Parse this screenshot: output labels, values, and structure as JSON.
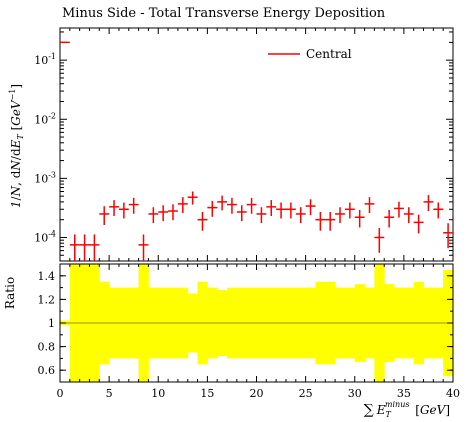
{
  "chart_data": [
    {
      "type": "scatter",
      "title": "Minus Side - Total Transverse Energy Deposition",
      "ylabel": "1/N, dN/dE_T [GeV^-1]",
      "yscale": "log",
      "xlim": [
        0,
        40
      ],
      "ylim": [
        4e-05,
        0.35
      ],
      "legend_position": "top-right",
      "xticks": [
        0,
        5,
        10,
        15,
        20,
        25,
        30,
        35,
        40
      ],
      "ytick_labels": [
        "10^-1",
        "10^-2",
        "10^-3",
        "10^-4"
      ],
      "ytick_values": [
        0.1,
        0.01,
        0.001,
        0.0001
      ],
      "series": [
        {
          "name": "Central",
          "color": "#ff0000",
          "x": [
            0.5,
            1.5,
            2.5,
            3.5,
            4.5,
            5.5,
            6.5,
            7.5,
            8.5,
            9.5,
            10.5,
            11.5,
            12.5,
            13.5,
            14.5,
            15.5,
            16.5,
            17.5,
            18.5,
            19.5,
            20.5,
            21.5,
            22.5,
            23.5,
            24.5,
            25.5,
            26.5,
            27.5,
            28.5,
            29.5,
            30.5,
            31.5,
            32.5,
            33.5,
            34.5,
            35.5,
            36.5,
            37.5,
            38.5,
            39.5
          ],
          "y": [
            0.2,
            7.5e-05,
            7.5e-05,
            7.5e-05,
            0.00025,
            0.00033,
            0.0003,
            0.00036,
            7.5e-05,
            0.00025,
            0.00027,
            0.00028,
            0.00037,
            0.00048,
            0.0002,
            0.00032,
            0.0004,
            0.00036,
            0.00027,
            0.00036,
            0.00025,
            0.00033,
            0.0003,
            0.0003,
            0.00025,
            0.00034,
            0.0002,
            0.0002,
            0.00025,
            0.0003,
            0.00022,
            0.00037,
            0.0001,
            0.00022,
            0.00031,
            0.00025,
            0.00018,
            0.0004,
            0.0003,
            0.00012
          ],
          "yerr_frac": [
            0.02,
            0.5,
            0.5,
            0.5,
            0.35,
            0.3,
            0.3,
            0.3,
            0.5,
            0.3,
            0.3,
            0.3,
            0.3,
            0.25,
            0.35,
            0.3,
            0.28,
            0.3,
            0.3,
            0.3,
            0.3,
            0.3,
            0.3,
            0.3,
            0.3,
            0.3,
            0.35,
            0.35,
            0.3,
            0.3,
            0.33,
            0.3,
            0.45,
            0.33,
            0.3,
            0.3,
            0.35,
            0.3,
            0.3,
            0.45
          ]
        }
      ]
    },
    {
      "type": "area",
      "ylabel": "Ratio",
      "xlabel": "∑ E_T^minus [GeV]",
      "xlim": [
        0,
        40
      ],
      "ylim": [
        0.5,
        1.5
      ],
      "xticks": [
        0,
        5,
        10,
        15,
        20,
        25,
        30,
        35,
        40
      ],
      "yticks": [
        0.6,
        0.8,
        1,
        1.2,
        1.4
      ],
      "ytick_labels": [
        "0.6",
        "0.8",
        "1",
        "1.2",
        "1.4"
      ],
      "band_color": "#ffff00",
      "reference_line": 1,
      "band_halfwidth": [
        0.02,
        0.5,
        0.5,
        0.5,
        0.35,
        0.3,
        0.3,
        0.3,
        0.5,
        0.3,
        0.3,
        0.3,
        0.3,
        0.25,
        0.35,
        0.3,
        0.28,
        0.3,
        0.3,
        0.3,
        0.3,
        0.3,
        0.3,
        0.3,
        0.3,
        0.3,
        0.35,
        0.35,
        0.3,
        0.3,
        0.33,
        0.3,
        0.5,
        0.33,
        0.3,
        0.3,
        0.35,
        0.3,
        0.3,
        0.45
      ]
    }
  ]
}
